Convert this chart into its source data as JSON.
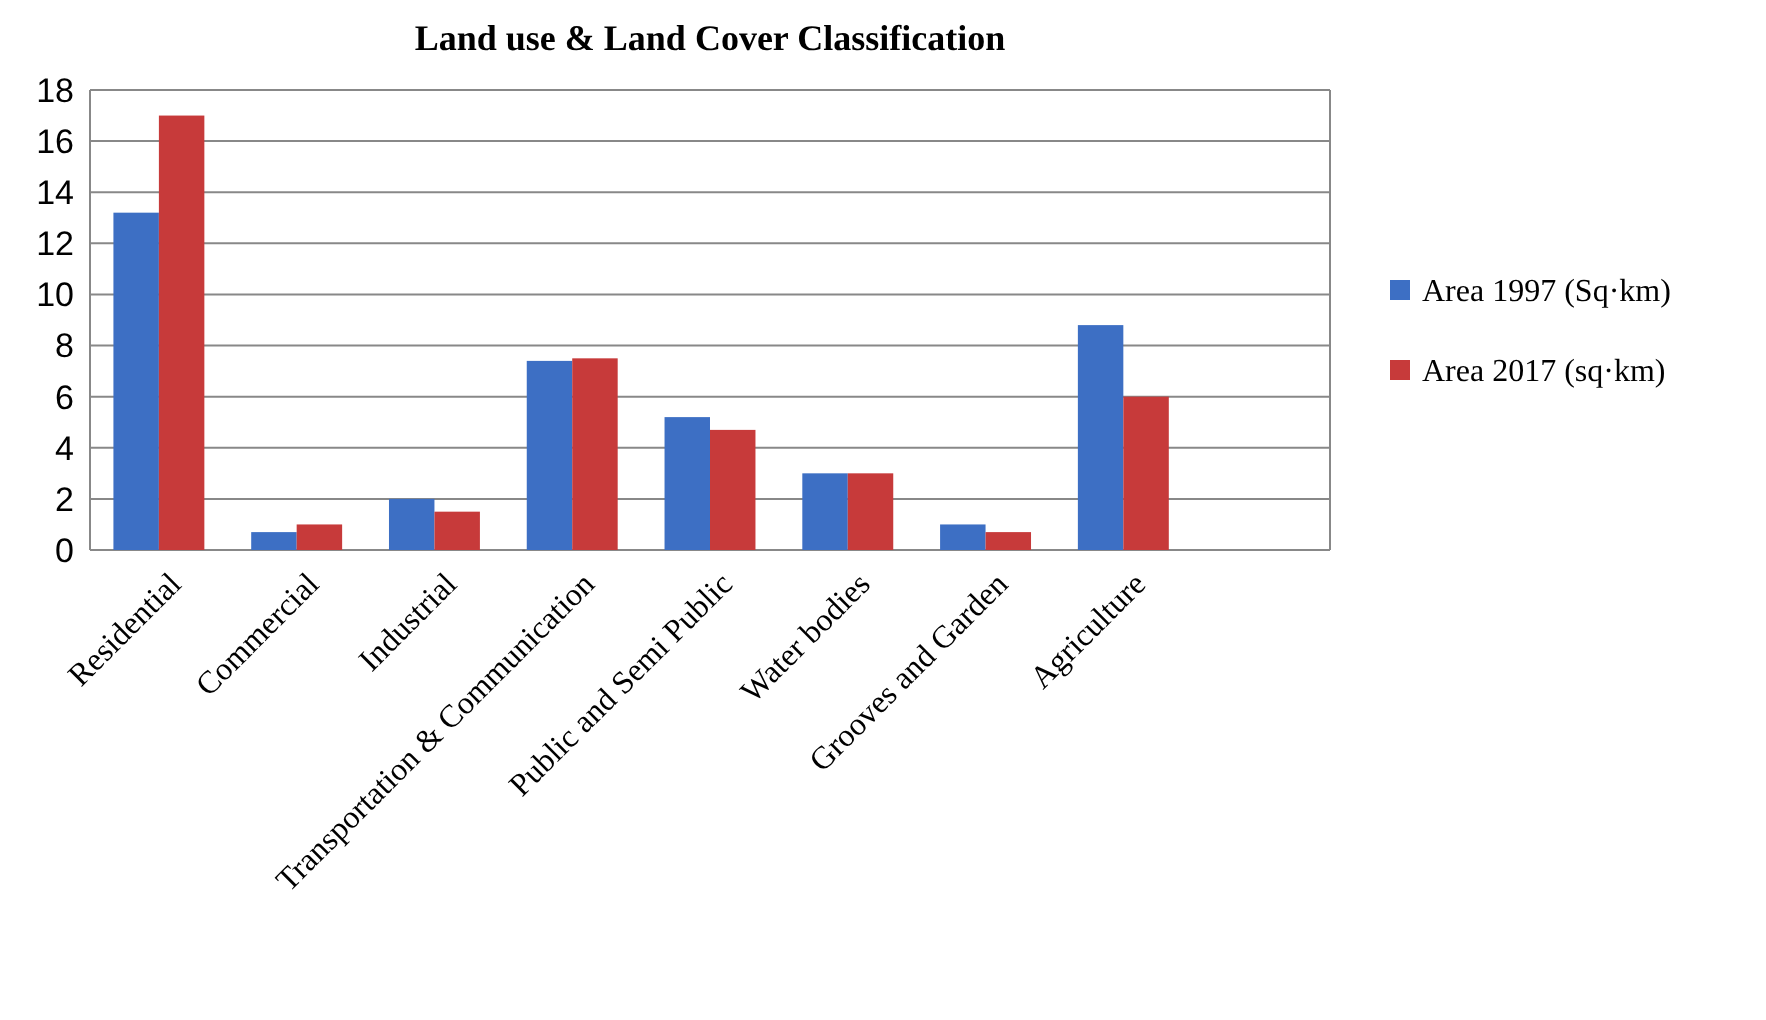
{
  "chart_data": {
    "type": "bar",
    "title": "Land use & Land Cover Classification",
    "categories": [
      "Residential",
      "Commercial",
      "Industrial",
      "Transportation & Communication",
      "Public and Semi Public",
      "Water bodies",
      "Grooves and Garden",
      "Agriculture",
      null
    ],
    "series": [
      {
        "name": "Area 1997 (Sq·km)",
        "color": "#3d6fc4",
        "values": [
          13.2,
          0.7,
          2.0,
          7.4,
          5.2,
          3.0,
          1.0,
          8.8,
          null
        ]
      },
      {
        "name": "Area 2017 (sq·km)",
        "color": "#c73a3a",
        "values": [
          17.0,
          1.0,
          1.5,
          7.5,
          4.7,
          3.0,
          0.7,
          6.0,
          null
        ]
      }
    ],
    "ylim": [
      0,
      18
    ],
    "yticks": [
      0,
      2,
      4,
      6,
      8,
      10,
      12,
      14,
      16,
      18
    ],
    "grid": "y",
    "legend": "right"
  }
}
